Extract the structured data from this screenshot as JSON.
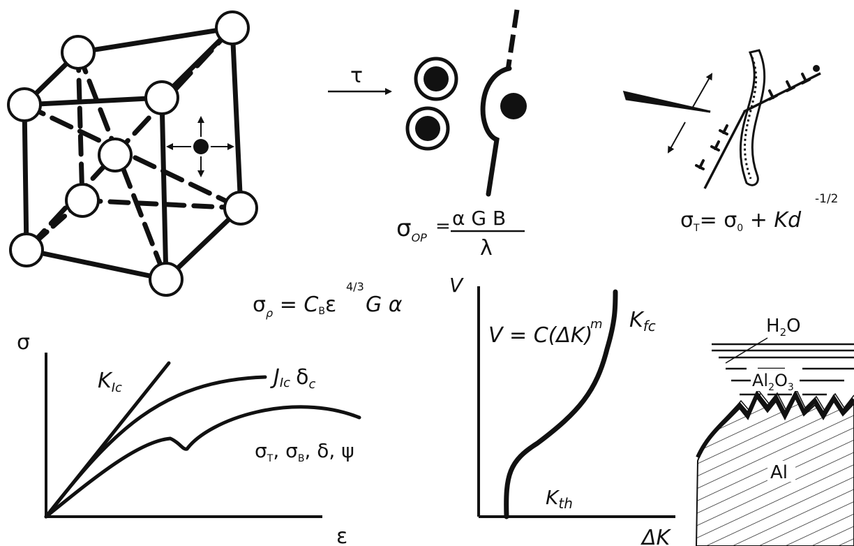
{
  "lattice": {
    "arrow_label": "τ"
  },
  "orowan": {
    "formula_lhs": "σ",
    "formula_sub": "OP",
    "formula_eq": "=",
    "formula_num": "α G B",
    "formula_den": "λ"
  },
  "hall_petch": {
    "lhs": "σ",
    "lhs_sub": "T",
    "rhs": "= σ",
    "rhs_sub": "0",
    "rhs_rest": " + Kd",
    "exponent": "-1/2"
  },
  "strain_hardening": {
    "lhs": "σ",
    "lhs_sub": "ρ",
    "eq": " = C",
    "c_sub": "B",
    "eps": "ε",
    "exponent": "4/3",
    "rest": " G α"
  },
  "stress_strain": {
    "y_label": "σ",
    "x_label": "ε",
    "k1c": "K",
    "k1c_sub": "Ic",
    "j1c": "J",
    "j1c_sub": "Ic",
    "delta_c": "δ",
    "delta_c_sub": "c",
    "props": "σ",
    "props_sub1": "T",
    "props_mid": ", σ",
    "props_sub2": "B",
    "props_tail": ", δ, ψ"
  },
  "fatigue": {
    "y_label": "V",
    "x_label": "ΔK",
    "paris": "V = C(ΔK)",
    "paris_exp": "m",
    "kfc": "K",
    "kfc_sub": "fc",
    "kth": "K",
    "kth_sub": "th"
  },
  "corrosion": {
    "water": "H",
    "water_sub": "2",
    "water_tail": "O",
    "oxide_a": "Al",
    "oxide_sub1": "2",
    "oxide_b": "O",
    "oxide_sub2": "3",
    "metal": "Al"
  }
}
